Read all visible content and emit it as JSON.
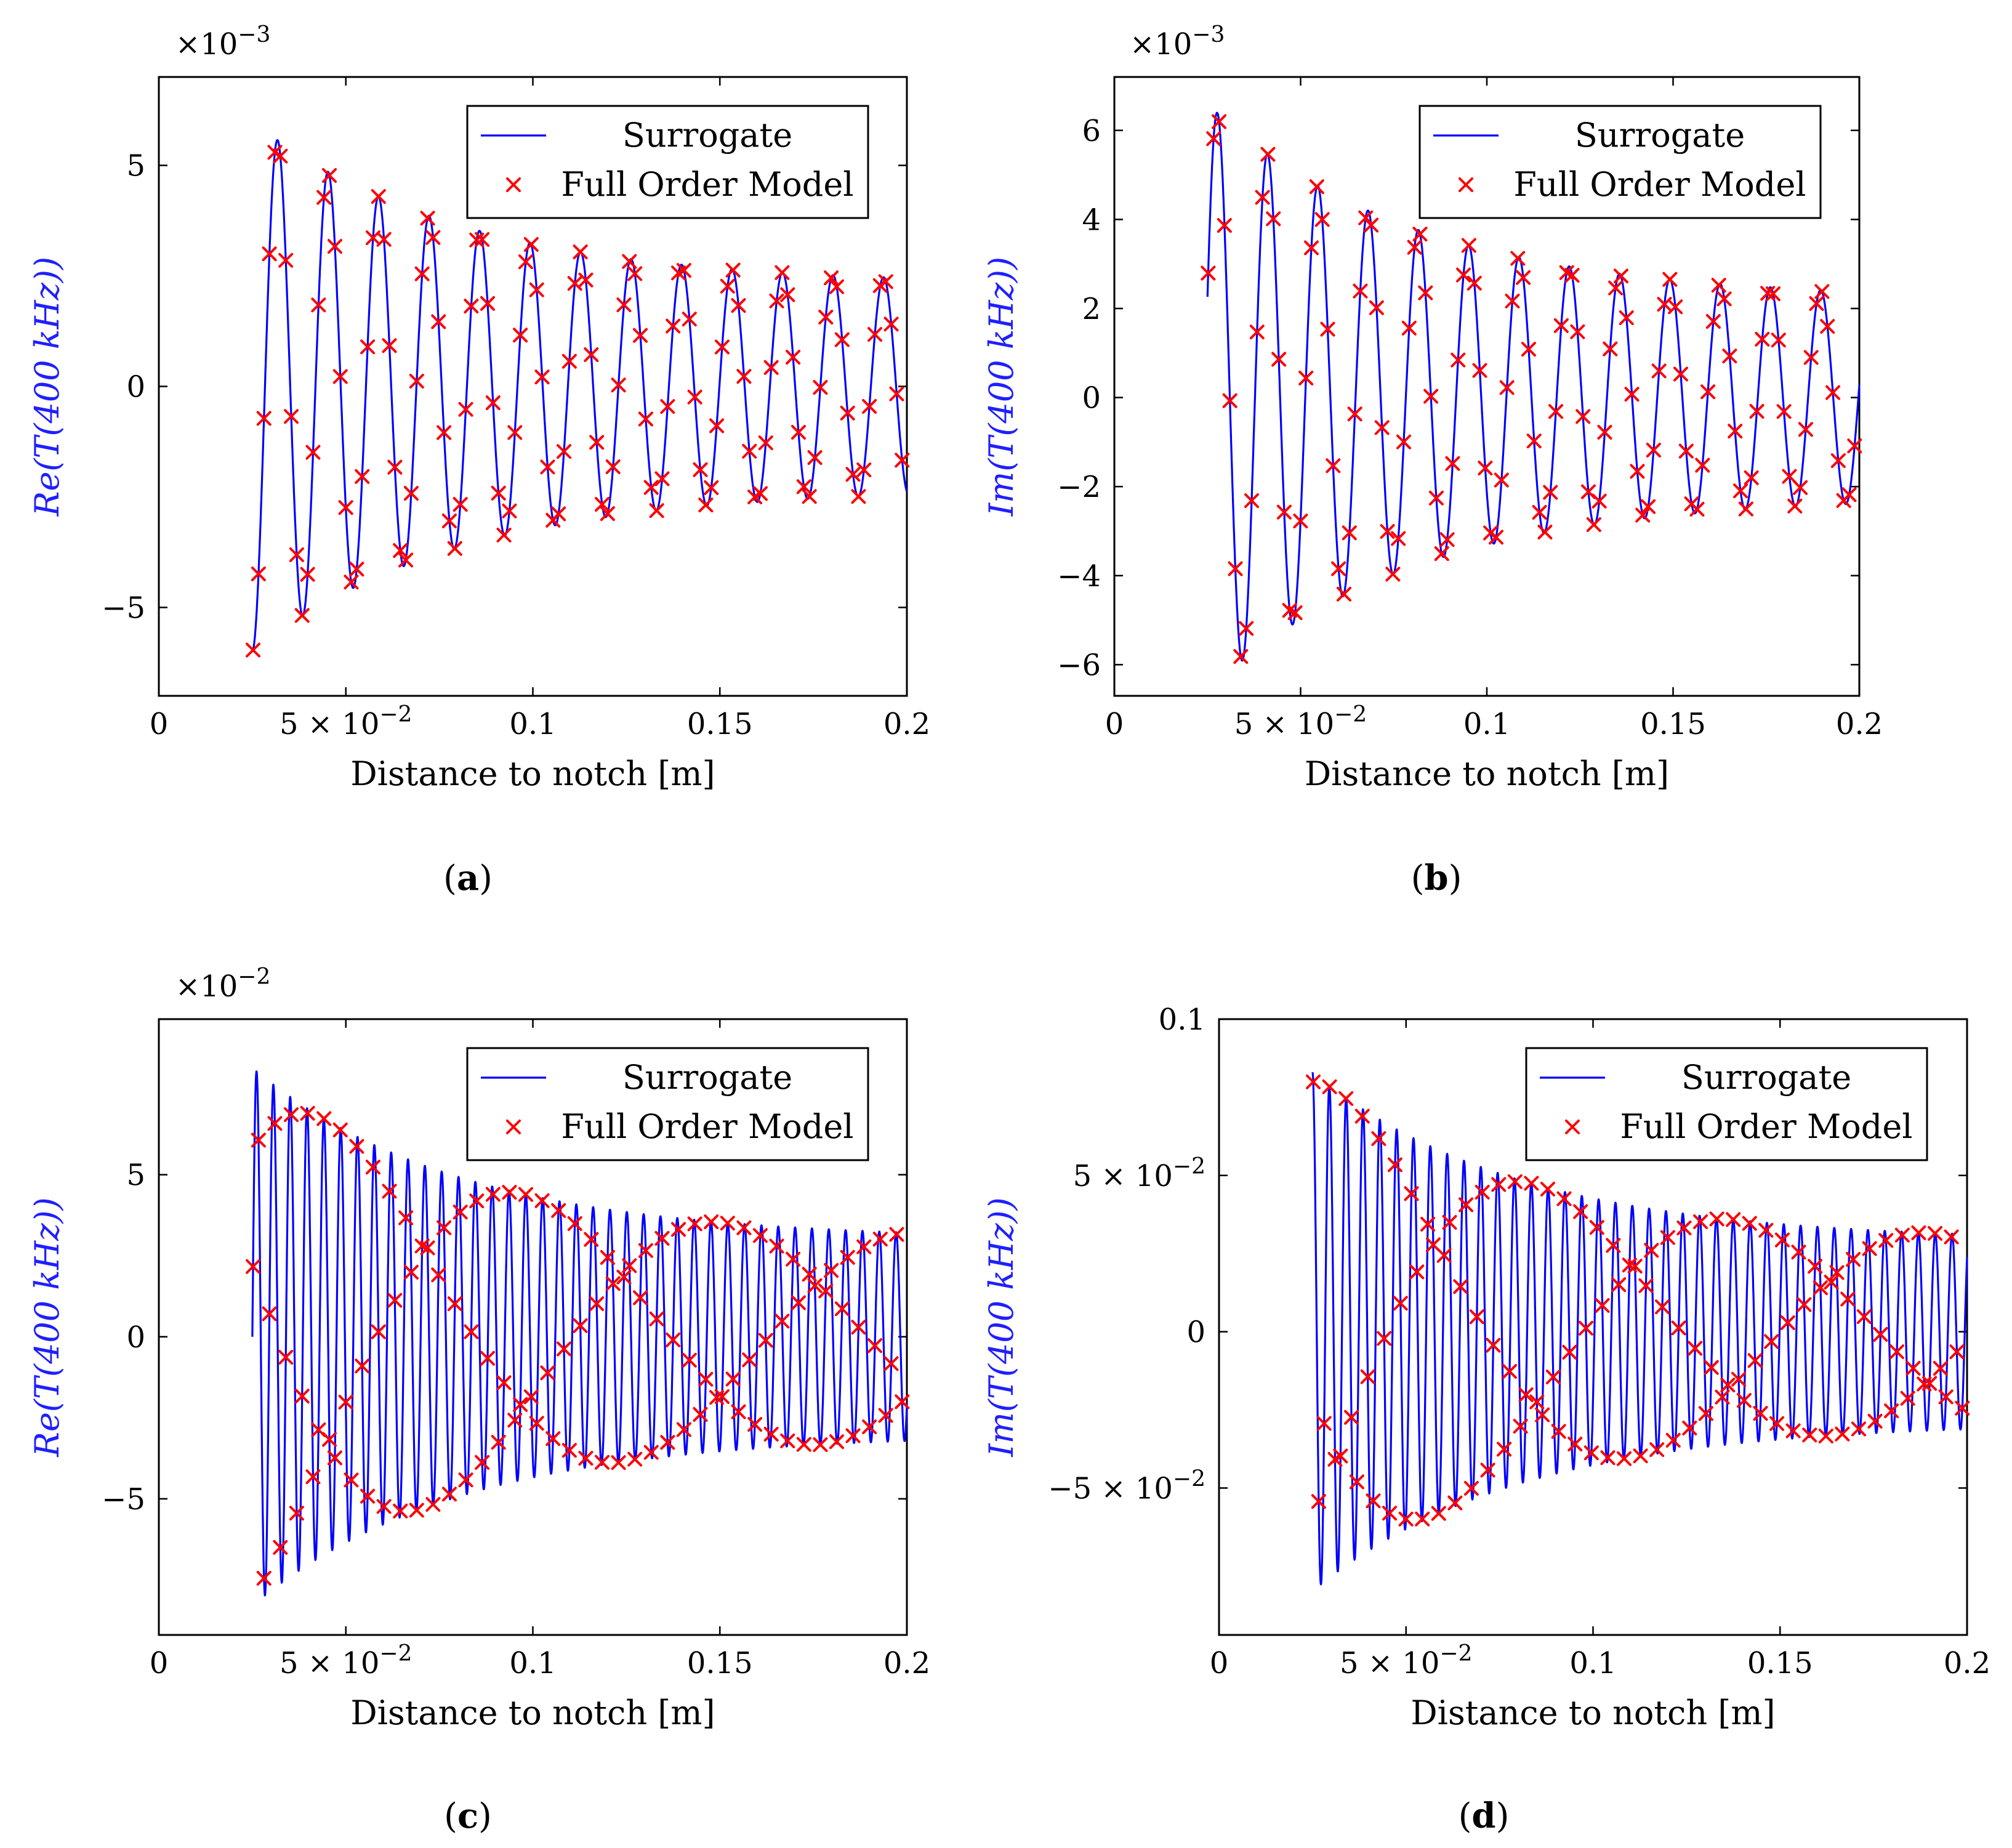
{
  "figure": {
    "legend": {
      "surrogate_label": "Surrogate",
      "fom_label": "Full Order Model"
    },
    "colors": {
      "surrogate": "#0000ff",
      "fom": "#ff0000",
      "ylabel": "#1f1fff"
    }
  },
  "chart_data": [
    {
      "id": "a",
      "type": "line",
      "caption": "a",
      "title": "",
      "xlabel": "Distance to notch [m]",
      "ylabel": "Re(T(400 kHz))",
      "ylabel_fn": "Re",
      "y_multiplier": "×10−3",
      "xlim": [
        0,
        0.2
      ],
      "ylim": [
        -7,
        7
      ],
      "x_ticks": [
        {
          "value": 0,
          "label": "0"
        },
        {
          "value": 0.05,
          "label": "5 × 10−2"
        },
        {
          "value": 0.1,
          "label": "0.1"
        },
        {
          "value": 0.15,
          "label": "0.15"
        },
        {
          "value": 0.2,
          "label": "0.2"
        }
      ],
      "y_ticks": [
        {
          "value": -5,
          "label": "−5"
        },
        {
          "value": 0,
          "label": "0"
        },
        {
          "value": 5,
          "label": "5"
        }
      ],
      "series": [
        {
          "name": "Surrogate",
          "style": "line",
          "x_start": 0.025,
          "x_end": 0.2,
          "amplitude_start": 6.0,
          "amplitude_end": 2.3,
          "wavelength": 0.0135,
          "phase": -1.5708
        },
        {
          "name": "Full Order Model",
          "style": "marker-x",
          "n_points": 120
        }
      ]
    },
    {
      "id": "b",
      "type": "line",
      "caption": "b",
      "title": "",
      "xlabel": "Distance to notch [m]",
      "ylabel": "Im(T(400 kHz))",
      "ylabel_fn": "Im",
      "y_multiplier": "×10−3",
      "xlim": [
        0,
        0.2
      ],
      "ylim": [
        -6.7,
        7.2
      ],
      "x_ticks": [
        {
          "value": 0,
          "label": "0"
        },
        {
          "value": 0.05,
          "label": "5 × 10−2"
        },
        {
          "value": 0.1,
          "label": "0.1"
        },
        {
          "value": 0.15,
          "label": "0.15"
        },
        {
          "value": 0.2,
          "label": "0.2"
        }
      ],
      "y_ticks": [
        {
          "value": -6,
          "label": "−6"
        },
        {
          "value": -4,
          "label": "−4"
        },
        {
          "value": -2,
          "label": "−2"
        },
        {
          "value": 0,
          "label": "0"
        },
        {
          "value": 2,
          "label": "2"
        },
        {
          "value": 4,
          "label": "4"
        },
        {
          "value": 6,
          "label": "6"
        }
      ],
      "series": [
        {
          "name": "Surrogate",
          "style": "line",
          "x_start": 0.025,
          "x_end": 0.2,
          "amplitude_start": 6.6,
          "amplitude_end": 2.2,
          "wavelength": 0.0135,
          "phase": 0.35
        },
        {
          "name": "Full Order Model",
          "style": "marker-x",
          "n_points": 120
        }
      ]
    },
    {
      "id": "c",
      "type": "line",
      "caption": "c",
      "title": "",
      "xlabel": "Distance to notch [m]",
      "ylabel": "Re(T(400 kHz))",
      "ylabel_fn": "Re",
      "y_multiplier": "×10−2",
      "xlim": [
        0,
        0.2
      ],
      "ylim": [
        -9.2,
        9.8
      ],
      "x_ticks": [
        {
          "value": 0,
          "label": "0"
        },
        {
          "value": 0.05,
          "label": "5 × 10−2"
        },
        {
          "value": 0.1,
          "label": "0.1"
        },
        {
          "value": 0.15,
          "label": "0.15"
        },
        {
          "value": 0.2,
          "label": "0.2"
        }
      ],
      "y_ticks": [
        {
          "value": -5,
          "label": "−5"
        },
        {
          "value": 0,
          "label": "0"
        },
        {
          "value": 5,
          "label": "5"
        }
      ],
      "series": [
        {
          "name": "Surrogate",
          "style": "line",
          "x_start": 0.025,
          "x_end": 0.2,
          "amplitude_start": 8.3,
          "amplitude_end": 3.0,
          "wavelength": 0.0045,
          "phase": 0.0
        },
        {
          "name": "Full Order Model",
          "style": "marker-x",
          "n_points": 120
        }
      ]
    },
    {
      "id": "d",
      "type": "line",
      "caption": "d",
      "title": "",
      "xlabel": "Distance to notch [m]",
      "ylabel": "Im(T(400 kHz))",
      "ylabel_fn": "Im",
      "y_multiplier": "",
      "xlim": [
        0,
        0.2
      ],
      "ylim": [
        -0.097,
        0.1
      ],
      "x_ticks": [
        {
          "value": 0,
          "label": "0"
        },
        {
          "value": 0.05,
          "label": "5 × 10−2"
        },
        {
          "value": 0.1,
          "label": "0.1"
        },
        {
          "value": 0.15,
          "label": "0.15"
        },
        {
          "value": 0.2,
          "label": "0.2"
        }
      ],
      "y_ticks": [
        {
          "value": -0.05,
          "label": "−5 × 10−2"
        },
        {
          "value": 0,
          "label": "0"
        },
        {
          "value": 0.05,
          "label": "5 × 10−2"
        },
        {
          "value": 0.1,
          "label": "0.1"
        }
      ],
      "series": [
        {
          "name": "Surrogate",
          "style": "line",
          "x_start": 0.025,
          "x_end": 0.2,
          "amplitude_start": 0.083,
          "amplitude_end": 0.029,
          "wavelength": 0.0045,
          "phase": 1.5708
        },
        {
          "name": "Full Order Model",
          "style": "marker-x",
          "n_points": 120
        }
      ]
    }
  ]
}
